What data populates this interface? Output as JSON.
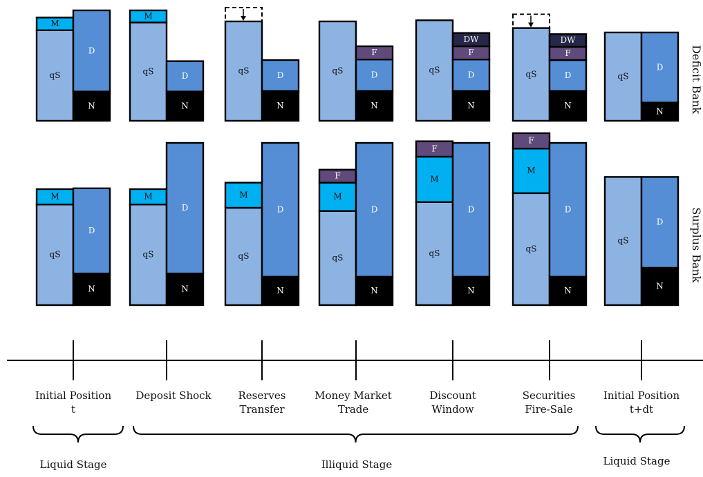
{
  "colors": {
    "qS": "#8db3e3",
    "D": "#558ed5",
    "N": "#000000",
    "M": "#00b0f0",
    "F": "#604a7b",
    "DW": "#262748"
  },
  "row_labels": {
    "deficit": "Deficit Bank",
    "surplus": "Surplus Bank"
  },
  "stage_labels": [
    {
      "lines": [
        "Initial Position",
        "t"
      ]
    },
    {
      "lines": [
        "Deposit Shock"
      ]
    },
    {
      "lines": [
        "Reserves",
        "Transfer"
      ]
    },
    {
      "lines": [
        "Money Market",
        "Trade"
      ]
    },
    {
      "lines": [
        "Discount",
        "Window"
      ]
    },
    {
      "lines": [
        "Securities",
        "Fire-Sale"
      ]
    },
    {
      "lines": [
        "Initial Position",
        "t+dt"
      ]
    }
  ],
  "phases": [
    {
      "label": "Liquid Stage"
    },
    {
      "label": "Illiquid Stage"
    },
    {
      "label": "Liquid Stage"
    }
  ],
  "deficit_panels": [
    {
      "left": [
        {
          "k": "qS",
          "text": "qS",
          "h": 0.82
        },
        {
          "k": "M",
          "text": "M",
          "h": 0.115
        }
      ],
      "right": [
        {
          "k": "N",
          "text": "N",
          "h": 0.265
        },
        {
          "k": "D",
          "text": "D",
          "h": 0.735
        }
      ]
    },
    {
      "left": [
        {
          "k": "qS",
          "text": "qS",
          "h": 0.89
        },
        {
          "k": "M",
          "text": "M",
          "h": 0.11
        }
      ],
      "right": [
        {
          "k": "N",
          "text": "N",
          "h": 0.265
        },
        {
          "k": "D",
          "text": "D",
          "h": 0.275
        }
      ]
    },
    {
      "left": [
        {
          "k": "qS",
          "text": "qS",
          "h": 0.9
        }
      ],
      "dashed_top": true,
      "right": [
        {
          "k": "N",
          "text": "N",
          "h": 0.27
        },
        {
          "k": "D",
          "text": "D",
          "h": 0.28
        }
      ]
    },
    {
      "left": [
        {
          "k": "qS",
          "text": "qS",
          "h": 0.9
        }
      ],
      "right": [
        {
          "k": "N",
          "text": "N",
          "h": 0.27
        },
        {
          "k": "D",
          "text": "D",
          "h": 0.285
        },
        {
          "k": "F",
          "text": "F",
          "h": 0.12
        }
      ]
    },
    {
      "left": [
        {
          "k": "qS",
          "text": "qS",
          "h": 0.91
        }
      ],
      "right": [
        {
          "k": "N",
          "text": "N",
          "h": 0.27
        },
        {
          "k": "D",
          "text": "D",
          "h": 0.285
        },
        {
          "k": "F",
          "text": "F",
          "h": 0.12
        },
        {
          "k": "DW",
          "text": "DW",
          "h": 0.12
        }
      ]
    },
    {
      "left": [
        {
          "k": "qS",
          "text": "qS",
          "h": 0.84
        }
      ],
      "dashed_top": true,
      "right": [
        {
          "k": "N",
          "text": "N",
          "h": 0.27
        },
        {
          "k": "D",
          "text": "D",
          "h": 0.28
        },
        {
          "k": "F",
          "text": "F",
          "h": 0.12
        },
        {
          "k": "DW",
          "text": "DW",
          "h": 0.115
        }
      ]
    },
    {
      "left": [
        {
          "k": "qS",
          "text": "qS",
          "h": 0.8
        }
      ],
      "right": [
        {
          "k": "N",
          "text": "N",
          "h": 0.165
        },
        {
          "k": "D",
          "text": "D",
          "h": 0.635
        }
      ]
    }
  ],
  "surplus_panels": [
    {
      "left": [
        {
          "k": "qS",
          "text": "qS",
          "h": 0.62
        },
        {
          "k": "M",
          "text": "M",
          "h": 0.095
        }
      ],
      "right": [
        {
          "k": "N",
          "text": "N",
          "h": 0.195
        },
        {
          "k": "D",
          "text": "D",
          "h": 0.525
        }
      ]
    },
    {
      "left": [
        {
          "k": "qS",
          "text": "qS",
          "h": 0.62
        },
        {
          "k": "M",
          "text": "M",
          "h": 0.095
        }
      ],
      "right": [
        {
          "k": "N",
          "text": "N",
          "h": 0.195
        },
        {
          "k": "D",
          "text": "D",
          "h": 0.805
        }
      ]
    },
    {
      "left": [
        {
          "k": "qS",
          "text": "qS",
          "h": 0.6
        },
        {
          "k": "M",
          "text": "M",
          "h": 0.155
        }
      ],
      "right": [
        {
          "k": "N",
          "text": "N",
          "h": 0.175
        },
        {
          "k": "D",
          "text": "D",
          "h": 0.825
        }
      ]
    },
    {
      "left": [
        {
          "k": "qS",
          "text": "qS",
          "h": 0.58
        },
        {
          "k": "M",
          "text": "M",
          "h": 0.175
        },
        {
          "k": "F",
          "text": "F",
          "h": 0.08
        }
      ],
      "right": [
        {
          "k": "N",
          "text": "N",
          "h": 0.175
        },
        {
          "k": "D",
          "text": "D",
          "h": 0.825
        }
      ]
    },
    {
      "left": [
        {
          "k": "qS",
          "text": "qS",
          "h": 0.635
        },
        {
          "k": "M",
          "text": "M",
          "h": 0.28
        },
        {
          "k": "F",
          "text": "F",
          "h": 0.095
        }
      ],
      "right": [
        {
          "k": "N",
          "text": "N",
          "h": 0.175
        },
        {
          "k": "D",
          "text": "D",
          "h": 0.825
        }
      ]
    },
    {
      "left": [
        {
          "k": "qS",
          "text": "qS",
          "h": 0.69
        },
        {
          "k": "M",
          "text": "M",
          "h": 0.275
        },
        {
          "k": "F",
          "text": "F",
          "h": 0.095
        }
      ],
      "right": [
        {
          "k": "N",
          "text": "N",
          "h": 0.175
        },
        {
          "k": "D",
          "text": "D",
          "h": 0.825
        }
      ]
    },
    {
      "left": [
        {
          "k": "qS",
          "text": "qS",
          "h": 0.79
        }
      ],
      "right": [
        {
          "k": "N",
          "text": "N",
          "h": 0.23
        },
        {
          "k": "D",
          "text": "D",
          "h": 0.56
        }
      ]
    }
  ]
}
